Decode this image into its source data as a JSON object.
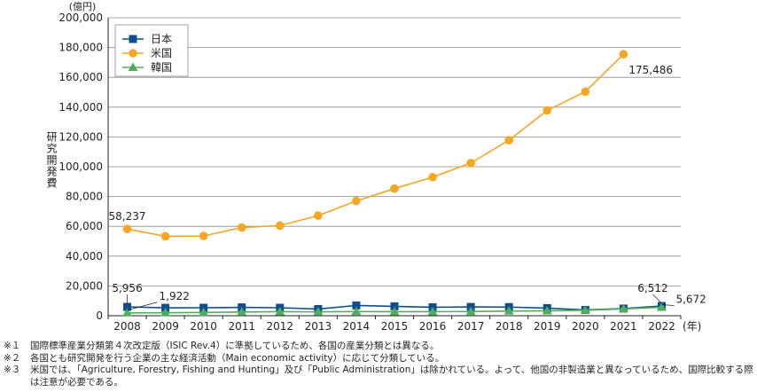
{
  "chart_data": {
    "type": "line",
    "y_unit": "(億円)",
    "x_unit": "(年)",
    "ylabel": "研究開発費",
    "xlabel": "",
    "ylim": [
      0,
      200000
    ],
    "yticks": [
      0,
      20000,
      40000,
      60000,
      80000,
      100000,
      120000,
      140000,
      160000,
      180000,
      200000
    ],
    "ytick_labels": [
      "0",
      "20,000",
      "40,000",
      "60,000",
      "80,000",
      "100,000",
      "120,000",
      "140,000",
      "160,000",
      "180,000",
      "200,000"
    ],
    "x": [
      "2008",
      "2009",
      "2010",
      "2011",
      "2012",
      "2013",
      "2014",
      "2015",
      "2016",
      "2017",
      "2018",
      "2019",
      "2020",
      "2021",
      "2022"
    ],
    "grid": true,
    "legend_position": "top-left",
    "series": [
      {
        "name": "日本",
        "color": "#0b4f8f",
        "marker": "square",
        "values": [
          5956,
          5300,
          5350,
          5600,
          5350,
          4500,
          6900,
          6300,
          5700,
          5900,
          5800,
          5100,
          3900,
          4800,
          6512
        ]
      },
      {
        "name": "米国",
        "color": "#f5a623",
        "marker": "circle",
        "values": [
          58237,
          53300,
          53500,
          59200,
          60500,
          67200,
          77000,
          85300,
          93000,
          102500,
          117800,
          137800,
          150400,
          175486,
          null
        ]
      },
      {
        "name": "韓国",
        "color": "#4fae5a",
        "marker": "triangle",
        "values": [
          1922,
          2000,
          2200,
          2500,
          2700,
          2600,
          2800,
          2700,
          2700,
          2800,
          3100,
          3300,
          3700,
          4600,
          5672
        ]
      }
    ],
    "annotations": [
      {
        "series": 1,
        "index": 0,
        "text": "58,237"
      },
      {
        "series": 1,
        "index": 13,
        "text": "175,486"
      },
      {
        "series": 0,
        "index": 0,
        "text": "5,956"
      },
      {
        "series": 2,
        "index": 0,
        "text": "1,922"
      },
      {
        "series": 0,
        "index": 14,
        "text": "6,512"
      },
      {
        "series": 2,
        "index": 14,
        "text": "5,672"
      }
    ]
  },
  "notes": [
    {
      "mark": "※１",
      "text": "国際標準産業分類第４次改定版（ISIC Rev.4）に準拠しているため、各国の産業分類とは異なる。"
    },
    {
      "mark": "※２",
      "text": "各国とも研究開発を行う企業の主な経済活動（Main economic activity）に応じて分類している。"
    },
    {
      "mark": "※３",
      "text": "米国では、「Agriculture, Forestry, Fishing and Hunting」及び「Public Administration」は除かれている。よって、他国の非製造業と異なっているため、国際比較する際は注意が必要である。"
    }
  ]
}
